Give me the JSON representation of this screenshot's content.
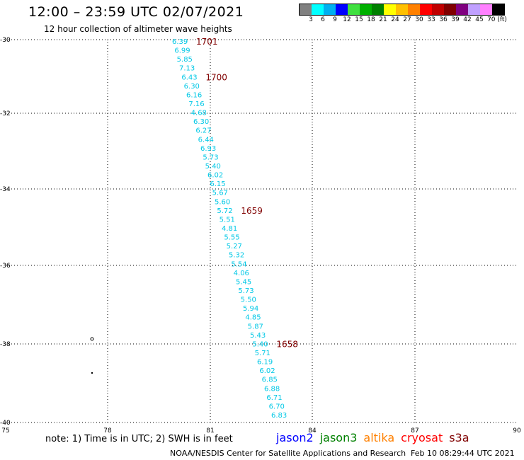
{
  "header": {
    "title": "12:00 – 23:59 UTC 02/07/2021",
    "subtitle": "12 hour collection of altimeter wave heights"
  },
  "legend": {
    "colors": [
      "#808080",
      "#00ffff",
      "#00b0f0",
      "#0000ff",
      "#40e040",
      "#00b000",
      "#008000",
      "#ffff00",
      "#ffc000",
      "#ff8000",
      "#ff0000",
      "#c00000",
      "#800000",
      "#800080",
      "#c0a0ff",
      "#ff80ff",
      "#000000"
    ],
    "labels": [
      "3",
      "6",
      "9",
      "12",
      "15",
      "18",
      "21",
      "24",
      "27",
      "30",
      "33",
      "36",
      "39",
      "42",
      "45",
      "70 (ft)"
    ]
  },
  "axes": {
    "lat_labels": [
      "-30",
      "-32",
      "-34",
      "-36",
      "-38",
      "-40"
    ],
    "lon_labels": [
      "75",
      "78",
      "81",
      "84",
      "87",
      "90"
    ]
  },
  "track": {
    "wave_color": "#00c8e6",
    "time_color": "#800000",
    "wave_heights": [
      "6.39",
      "6.99",
      "5.85",
      "7.13",
      "6.43",
      "6.30",
      "6.16",
      "7.16",
      "4.68",
      "6.30",
      "6.27",
      "6.44",
      "6.93",
      "5.73",
      "5.40",
      "6.02",
      "6.15",
      "5.67",
      "5.60",
      "5.72",
      "5.51",
      "4.81",
      "5.55",
      "5.27",
      "5.32",
      "5.54",
      "4.06",
      "5.45",
      "5.73",
      "5.50",
      "5.94",
      "4.85",
      "5.87",
      "5.43",
      "5.40",
      "5.71",
      "6.19",
      "6.02",
      "6.85",
      "6.88",
      "6.71",
      "6.70",
      "6.83"
    ],
    "time_labels": [
      {
        "text": "1701",
        "index": 0
      },
      {
        "text": "1700",
        "index": 4
      },
      {
        "text": "1659",
        "index": 19
      },
      {
        "text": "1658",
        "index": 34
      }
    ]
  },
  "footer": {
    "note": "note: 1) Time is in UTC; 2) SWH is in feet",
    "satellites": [
      {
        "name": "jason2",
        "color": "#0000ff"
      },
      {
        "name": "jason3",
        "color": "#008000"
      },
      {
        "name": "altika",
        "color": "#ff8000"
      },
      {
        "name": "cryosat",
        "color": "#ff0000"
      },
      {
        "name": "s3a",
        "color": "#800000"
      }
    ],
    "credit": "NOAA/NESDIS Center for Satellite Applications and Research",
    "timestamp": "Feb 10 08:29:44 UTC 2021"
  }
}
